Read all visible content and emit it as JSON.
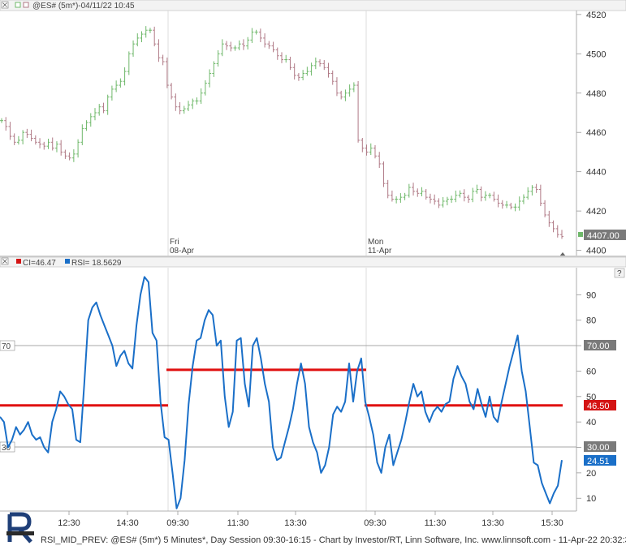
{
  "price_panel": {
    "title": "@ES# (5m*)-04/11/22 10:45",
    "y_ticks": [
      "4520",
      "4500",
      "4480",
      "4460",
      "4440",
      "4420",
      "4400"
    ],
    "last_price": "4407.00",
    "session_labels": [
      {
        "line1": "Fri",
        "line2": "08-Apr"
      },
      {
        "line1": "Mon",
        "line2": "11-Apr"
      }
    ]
  },
  "rsi_panel": {
    "legend_ci": "CI=46.47",
    "legend_rsi": "RSI= 18.5629",
    "y_ticks": [
      "90",
      "80",
      "70",
      "60",
      "50",
      "40",
      "30",
      "20",
      "10"
    ],
    "level_left_70": "70",
    "level_left_30": "30",
    "tag_70": "70.00",
    "tag_30": "30.00",
    "tag_ci": "46.50",
    "tag_rsi": "24.51"
  },
  "x_axis": {
    "ticks": [
      "12:30",
      "14:30",
      "09:30",
      "11:30",
      "13:30",
      "09:30",
      "11:30",
      "13:30",
      "15:30"
    ]
  },
  "footer": {
    "text": "RSI_MID_PREV: @ES# (5m*) 5 Minutes*, Day Session 09:30-16:15 - Chart by Investor/RT, Linn Software, Inc. www.linnsoft.com - 11-Apr-22 20:32:3"
  },
  "colors": {
    "candle_up": "#6fb86a",
    "candle_down": "#b07a86",
    "rsi_line": "#1a6fc8",
    "ci_line": "#e01010",
    "ci_tag": "#d41414",
    "rsi_tag": "#1a6fc8",
    "level_tag": "#7a7a7a",
    "last_price_tag": "#7a7a7a"
  },
  "chart_data": [
    {
      "type": "line",
      "series": [
        {
          "values": [
            4466,
            4463,
            4458,
            4455,
            4456,
            4460,
            4459,
            4457,
            4455,
            4454,
            4453,
            4455,
            4452,
            4454,
            4450,
            4448,
            4447,
            4449,
            4455,
            4462,
            4465,
            4468,
            4470,
            4473,
            4471,
            4478,
            4482,
            4484,
            4486,
            4491,
            4500,
            4505,
            4508,
            4510,
            4512,
            4512,
            4505,
            4498,
            4496,
            4484,
            4478,
            4473,
            4471,
            4472,
            4474,
            4476,
            4476,
            4480,
            4485,
            4490,
            4495,
            4500,
            4505,
            4504,
            4503,
            4503,
            4505,
            4504,
            4507,
            4511,
            4511,
            4508,
            4505,
            4504,
            4502,
            4499,
            4497,
            4497,
            4493,
            4489,
            4488,
            4490,
            4491,
            4494,
            4496,
            4495,
            4493,
            4490,
            4486,
            4480,
            4478,
            4480,
            4482,
            4484,
            4456,
            4452,
            4450,
            4452,
            4448,
            4444,
            4434,
            4428,
            4426,
            4426,
            4427,
            4428,
            4432,
            4430,
            4429,
            4430,
            4427,
            4426,
            4425,
            4423,
            4425,
            4426,
            4426,
            4428,
            4429,
            4427,
            4426,
            4430,
            4431,
            4427,
            4428,
            4428,
            4426,
            4424,
            4423,
            4423,
            4422,
            4422,
            4425,
            4427,
            4430,
            4432,
            4431,
            4424,
            4418,
            4414,
            4411,
            4408,
            4407
          ]
        }
      ],
      "ylim": [
        4399,
        4522
      ]
    },
    {
      "type": "line",
      "series": [
        {
          "name": "RSI",
          "values": [
            42,
            40,
            30,
            33,
            38,
            35,
            37,
            40,
            35,
            33,
            34,
            30,
            28,
            40,
            45,
            52,
            50,
            47,
            45,
            33,
            32,
            55,
            80,
            85,
            87,
            82,
            78,
            74,
            70,
            62,
            66,
            68,
            63,
            61,
            78,
            90,
            97,
            95,
            75,
            72,
            48,
            34,
            33,
            20,
            6,
            10,
            25,
            47,
            62,
            72,
            73,
            80,
            84,
            82,
            70,
            72,
            50,
            38,
            44,
            72,
            73,
            55,
            46,
            70,
            73,
            65,
            55,
            48,
            30,
            25,
            26,
            32,
            38,
            45,
            55,
            63,
            55,
            38,
            32,
            28,
            20,
            23,
            30,
            43,
            46,
            44,
            48,
            63,
            48,
            60,
            65,
            48,
            42,
            35,
            24,
            20,
            30,
            35,
            23,
            28,
            33,
            40,
            48,
            55,
            50,
            52,
            44,
            40,
            44,
            46,
            44,
            47,
            48,
            57,
            62,
            58,
            55,
            48,
            45,
            53,
            47,
            42,
            50,
            42,
            40,
            48,
            55,
            62,
            68,
            74,
            60,
            52,
            38,
            24,
            23,
            16,
            12,
            8,
            12,
            15,
            25
          ]
        },
        {
          "name": "CI",
          "segments": [
            {
              "from": "12:00",
              "to": "09:30",
              "value": 46.5
            },
            {
              "from": "09:30",
              "to": "09:30",
              "value": 60.5
            },
            {
              "from": "09:30",
              "to": "15:45",
              "value": 46.5
            }
          ]
        }
      ],
      "ylim": [
        0,
        100
      ],
      "reference_lines": [
        70,
        30
      ]
    }
  ]
}
